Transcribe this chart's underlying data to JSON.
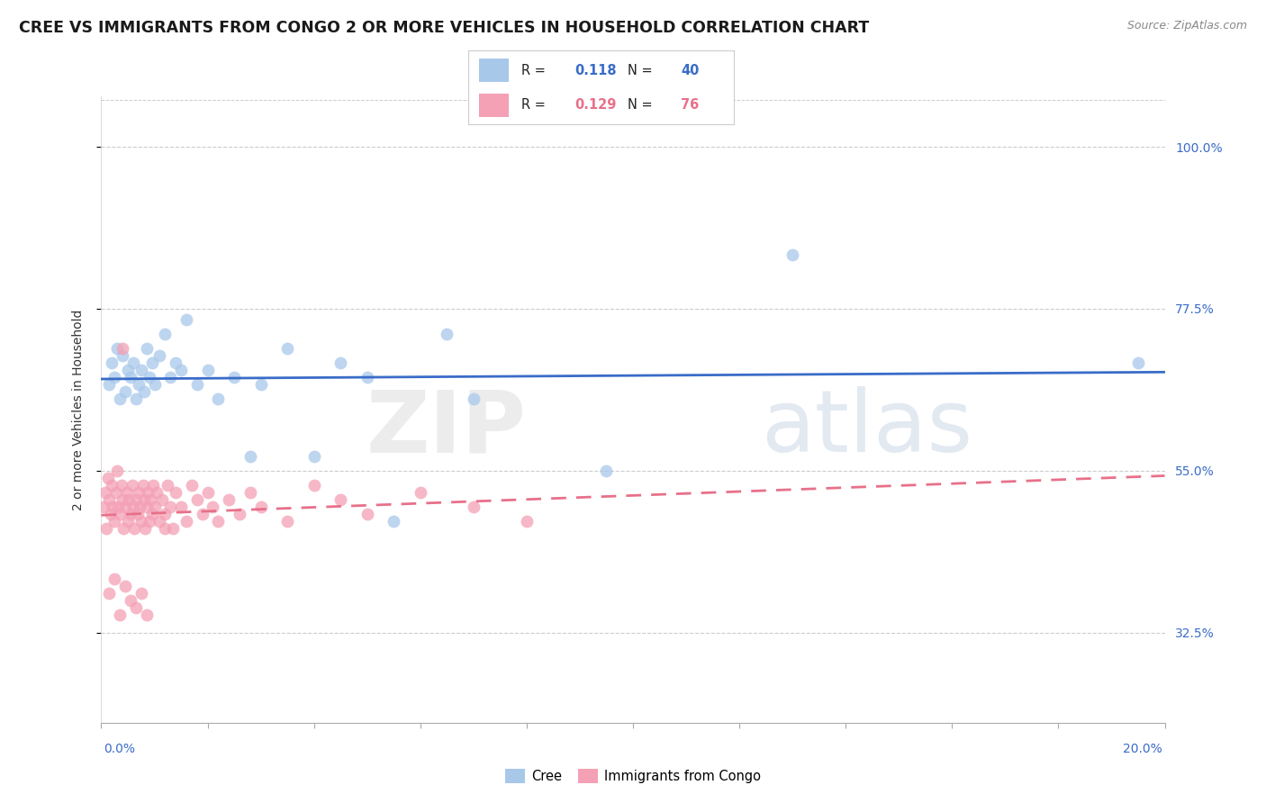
{
  "title": "CREE VS IMMIGRANTS FROM CONGO 2 OR MORE VEHICLES IN HOUSEHOLD CORRELATION CHART",
  "source": "Source: ZipAtlas.com",
  "ylabel": "2 or more Vehicles in Household",
  "xmin": 0.0,
  "xmax": 20.0,
  "ymin": 20.0,
  "ymax": 107.0,
  "yticks": [
    32.5,
    55.0,
    77.5,
    100.0
  ],
  "ytick_labels": [
    "32.5%",
    "55.0%",
    "77.5%",
    "100.0%"
  ],
  "legend_R1": "0.118",
  "legend_N1": "40",
  "legend_R2": "0.129",
  "legend_N2": "76",
  "cree_color": "#a8c8ea",
  "congo_color": "#f4a0b5",
  "cree_line_color": "#3a6cc8",
  "congo_line_color": "#e8708a",
  "title_color": "#1a1a1a",
  "source_color": "#888888",
  "tick_color": "#3a6cc8",
  "label_color": "#333333",
  "title_fontsize": 12.5,
  "tick_fontsize": 10,
  "ylabel_fontsize": 10,
  "cree_x": [
    0.15,
    0.2,
    0.25,
    0.3,
    0.35,
    0.4,
    0.45,
    0.5,
    0.55,
    0.6,
    0.65,
    0.7,
    0.75,
    0.8,
    0.85,
    0.9,
    0.95,
    1.0,
    1.1,
    1.2,
    1.3,
    1.4,
    1.5,
    1.6,
    1.8,
    2.0,
    2.2,
    2.5,
    2.8,
    3.0,
    3.5,
    4.0,
    4.5,
    5.0,
    5.5,
    6.5,
    7.0,
    9.5,
    13.0,
    19.5
  ],
  "cree_y": [
    67,
    70,
    68,
    72,
    65,
    71,
    66,
    69,
    68,
    70,
    65,
    67,
    69,
    66,
    72,
    68,
    70,
    67,
    71,
    74,
    68,
    70,
    69,
    76,
    67,
    69,
    65,
    68,
    57,
    67,
    72,
    57,
    70,
    68,
    48,
    74,
    65,
    55,
    85,
    70
  ],
  "congo_x": [
    0.05,
    0.08,
    0.1,
    0.12,
    0.15,
    0.18,
    0.2,
    0.22,
    0.25,
    0.28,
    0.3,
    0.32,
    0.35,
    0.38,
    0.4,
    0.42,
    0.45,
    0.48,
    0.5,
    0.52,
    0.55,
    0.58,
    0.6,
    0.62,
    0.65,
    0.68,
    0.7,
    0.72,
    0.75,
    0.78,
    0.8,
    0.82,
    0.85,
    0.88,
    0.9,
    0.92,
    0.95,
    0.98,
    1.0,
    1.05,
    1.1,
    1.15,
    1.2,
    1.25,
    1.3,
    1.35,
    1.4,
    1.5,
    1.6,
    1.7,
    1.8,
    1.9,
    2.0,
    2.1,
    2.2,
    2.4,
    2.6,
    2.8,
    3.0,
    3.5,
    4.0,
    4.5,
    5.0,
    6.0,
    7.0,
    8.0,
    0.15,
    0.25,
    0.35,
    0.45,
    0.55,
    0.65,
    0.75,
    0.85,
    0.4,
    1.2
  ],
  "congo_y": [
    50,
    52,
    47,
    54,
    51,
    49,
    53,
    50,
    48,
    52,
    55,
    50,
    49,
    53,
    51,
    47,
    50,
    52,
    48,
    51,
    49,
    53,
    50,
    47,
    51,
    49,
    52,
    50,
    48,
    53,
    51,
    47,
    50,
    52,
    48,
    51,
    49,
    53,
    50,
    52,
    48,
    51,
    49,
    53,
    50,
    47,
    52,
    50,
    48,
    53,
    51,
    49,
    52,
    50,
    48,
    51,
    49,
    52,
    50,
    48,
    53,
    51,
    49,
    52,
    50,
    48,
    38,
    40,
    35,
    39,
    37,
    36,
    38,
    35,
    72,
    47
  ]
}
